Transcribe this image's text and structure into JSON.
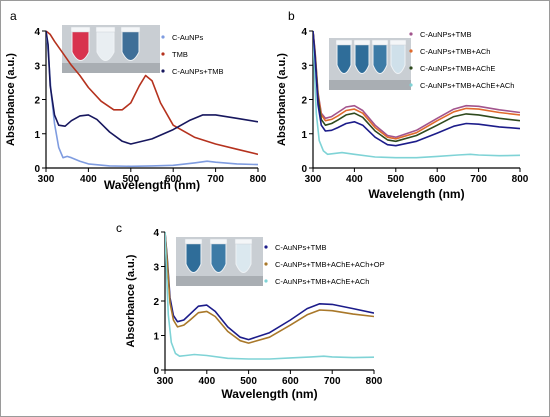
{
  "figure": {
    "border_color": "#9a9a9a"
  },
  "chart_data": [
    {
      "panel": "a",
      "type": "line",
      "xlabel": "Wavelength (nm)",
      "ylabel": "Absorbance (a.u.)",
      "xlim": [
        300,
        800
      ],
      "ylim": [
        0,
        4
      ],
      "xticks": [
        300,
        400,
        500,
        600,
        700,
        800
      ],
      "yticks": [
        0,
        1,
        2,
        3,
        4
      ],
      "legend_position": "top-right",
      "vial_colors": [
        "#d8334e",
        "#e9eef2",
        "#3f6f98"
      ],
      "series": [
        {
          "name": "C-AuNPs",
          "color": "#7f9ce0",
          "x": [
            300,
            305,
            312,
            320,
            330,
            340,
            350,
            360,
            380,
            400,
            450,
            500,
            550,
            600,
            650,
            680,
            700,
            750,
            800
          ],
          "y": [
            4.0,
            3.4,
            2.2,
            1.3,
            0.6,
            0.3,
            0.34,
            0.3,
            0.2,
            0.12,
            0.06,
            0.05,
            0.06,
            0.08,
            0.15,
            0.2,
            0.17,
            0.12,
            0.1
          ]
        },
        {
          "name": "TMB",
          "color": "#b5321e",
          "x": [
            300,
            310,
            320,
            340,
            360,
            380,
            400,
            430,
            460,
            480,
            500,
            520,
            535,
            550,
            570,
            600,
            650,
            700,
            750,
            800
          ],
          "y": [
            4.0,
            3.9,
            3.7,
            3.35,
            3.0,
            2.7,
            2.35,
            1.95,
            1.7,
            1.7,
            1.9,
            2.4,
            2.7,
            2.55,
            1.9,
            1.25,
            0.9,
            0.7,
            0.55,
            0.4
          ]
        },
        {
          "name": "C-AuNPs+TMB",
          "color": "#17175e",
          "x": [
            300,
            305,
            310,
            320,
            330,
            345,
            360,
            380,
            400,
            420,
            450,
            480,
            500,
            550,
            600,
            640,
            670,
            700,
            750,
            800
          ],
          "y": [
            4.0,
            3.6,
            2.4,
            1.55,
            1.25,
            1.22,
            1.38,
            1.52,
            1.55,
            1.42,
            1.05,
            0.78,
            0.7,
            0.85,
            1.12,
            1.4,
            1.55,
            1.55,
            1.45,
            1.35
          ]
        }
      ]
    },
    {
      "panel": "b",
      "type": "line",
      "xlabel": "Wavelength (nm)",
      "ylabel": "Absorbance (a.u.)",
      "xlim": [
        300,
        800
      ],
      "ylim": [
        0,
        4
      ],
      "xticks": [
        300,
        400,
        500,
        600,
        700,
        800
      ],
      "yticks": [
        0,
        1,
        2,
        3,
        4
      ],
      "legend_position": "top-right",
      "vial_colors": [
        "#2f6d99",
        "#2f6d99",
        "#3d7ba6",
        "#cfe0ea"
      ],
      "series": [
        {
          "name": "C-AuNPs+TMB",
          "color": "#a2548d",
          "x": [
            300,
            305,
            312,
            320,
            330,
            345,
            360,
            380,
            400,
            420,
            450,
            480,
            500,
            550,
            600,
            640,
            670,
            700,
            750,
            800
          ],
          "y": [
            4.0,
            3.4,
            2.2,
            1.6,
            1.45,
            1.5,
            1.62,
            1.78,
            1.82,
            1.68,
            1.25,
            0.95,
            0.9,
            1.1,
            1.45,
            1.72,
            1.82,
            1.8,
            1.7,
            1.62
          ]
        },
        {
          "name": "C-AuNPs+TMB+ACh",
          "color": "#e06a2c",
          "x": [
            300,
            305,
            312,
            320,
            330,
            345,
            360,
            380,
            400,
            420,
            450,
            480,
            500,
            550,
            600,
            640,
            670,
            700,
            750,
            800
          ],
          "y": [
            4.0,
            3.35,
            2.15,
            1.55,
            1.38,
            1.42,
            1.52,
            1.68,
            1.72,
            1.6,
            1.18,
            0.9,
            0.85,
            1.03,
            1.38,
            1.64,
            1.74,
            1.72,
            1.62,
            1.55
          ]
        },
        {
          "name": "C-AuNPs+TMB+AChE",
          "color": "#2f4a1e",
          "x": [
            300,
            305,
            312,
            320,
            330,
            345,
            360,
            380,
            400,
            420,
            450,
            480,
            500,
            550,
            600,
            640,
            670,
            700,
            750,
            800
          ],
          "y": [
            4.0,
            3.3,
            2.05,
            1.42,
            1.25,
            1.3,
            1.4,
            1.55,
            1.6,
            1.48,
            1.08,
            0.82,
            0.78,
            0.95,
            1.25,
            1.5,
            1.58,
            1.55,
            1.45,
            1.38
          ]
        },
        {
          "name": "C-AuNPs+TMB+AChE+ACh",
          "color": "#7fd3d6",
          "x": [
            300,
            303,
            308,
            315,
            325,
            335,
            350,
            370,
            400,
            450,
            500,
            550,
            600,
            650,
            680,
            700,
            750,
            800
          ],
          "y": [
            4.0,
            3.0,
            1.6,
            0.8,
            0.5,
            0.4,
            0.42,
            0.45,
            0.4,
            0.32,
            0.3,
            0.3,
            0.34,
            0.38,
            0.4,
            0.38,
            0.36,
            0.37
          ]
        },
        {
          "name": "",
          "color": "#1c1c8a",
          "x": [
            300,
            305,
            312,
            320,
            330,
            345,
            360,
            380,
            400,
            420,
            450,
            480,
            500,
            550,
            600,
            640,
            670,
            700,
            750,
            800
          ],
          "y": [
            4.0,
            3.2,
            1.85,
            1.25,
            1.08,
            1.1,
            1.18,
            1.3,
            1.35,
            1.25,
            0.9,
            0.68,
            0.65,
            0.78,
            1.02,
            1.22,
            1.3,
            1.28,
            1.2,
            1.15
          ]
        }
      ]
    },
    {
      "panel": "c",
      "type": "line",
      "xlabel": "Wavelength (nm)",
      "ylabel": "Absorbance (a.u.)",
      "xlim": [
        300,
        800
      ],
      "ylim": [
        0,
        4
      ],
      "xticks": [
        300,
        400,
        500,
        600,
        700,
        800
      ],
      "yticks": [
        0,
        1,
        2,
        3,
        4
      ],
      "legend_position": "top-right",
      "vial_colors": [
        "#2f6d99",
        "#3d7ba6",
        "#dbe8ef"
      ],
      "series": [
        {
          "name": "C-AuNPs+TMB",
          "color": "#1c1c8a",
          "x": [
            300,
            305,
            312,
            320,
            330,
            345,
            360,
            380,
            400,
            420,
            450,
            480,
            500,
            550,
            600,
            640,
            670,
            700,
            750,
            800
          ],
          "y": [
            4.0,
            3.3,
            2.1,
            1.58,
            1.4,
            1.45,
            1.62,
            1.85,
            1.88,
            1.7,
            1.25,
            0.95,
            0.88,
            1.08,
            1.45,
            1.78,
            1.92,
            1.9,
            1.78,
            1.65
          ]
        },
        {
          "name": "C-AuNPs+TMB+AChE+ACh+OP",
          "color": "#a9782a",
          "x": [
            300,
            305,
            312,
            320,
            330,
            345,
            360,
            380,
            400,
            420,
            450,
            480,
            500,
            550,
            600,
            640,
            670,
            700,
            750,
            800
          ],
          "y": [
            4.0,
            3.2,
            1.95,
            1.45,
            1.25,
            1.3,
            1.45,
            1.66,
            1.7,
            1.55,
            1.12,
            0.85,
            0.78,
            0.95,
            1.3,
            1.6,
            1.74,
            1.72,
            1.62,
            1.55
          ]
        },
        {
          "name": "C-AuNPs+TMB+AChE+ACh",
          "color": "#7fd3d6",
          "x": [
            300,
            303,
            308,
            315,
            325,
            335,
            350,
            370,
            400,
            450,
            500,
            550,
            600,
            650,
            680,
            700,
            750,
            800
          ],
          "y": [
            4.0,
            3.0,
            1.6,
            0.8,
            0.48,
            0.4,
            0.42,
            0.45,
            0.42,
            0.34,
            0.32,
            0.32,
            0.35,
            0.38,
            0.4,
            0.38,
            0.36,
            0.37
          ]
        }
      ]
    }
  ]
}
